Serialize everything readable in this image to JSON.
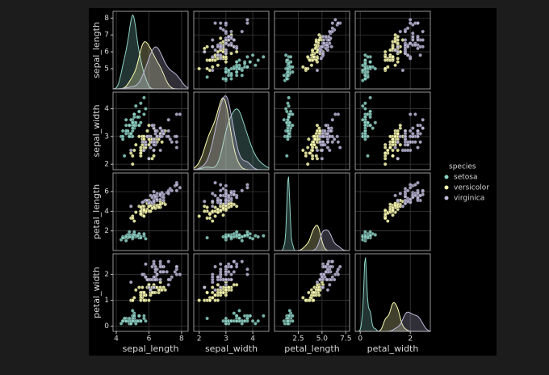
{
  "chart_data": {
    "type": "pairplot",
    "legend_title": "species",
    "legend": "right",
    "variables": [
      {
        "name": "sepal_length",
        "lim": [
          3.8,
          8.4
        ],
        "xticks": [
          4,
          6,
          8
        ],
        "yticks": [
          5,
          6,
          7,
          8
        ]
      },
      {
        "name": "sepal_width",
        "lim": [
          1.8,
          4.6
        ],
        "xticks": [
          2,
          3,
          4
        ],
        "yticks": [
          2,
          3,
          4
        ]
      },
      {
        "name": "petal_length",
        "lim": [
          0,
          7.9
        ],
        "xticks": [
          {
            "value": 2.5,
            "label": "2.5"
          },
          {
            "value": 5,
            "label": "5.0"
          },
          {
            "value": 7.5,
            "label": "7.5"
          }
        ],
        "yticks": [
          2,
          4,
          6
        ]
      },
      {
        "name": "petal_width",
        "lim": [
          -0.2,
          2.8
        ],
        "xticks": [
          0,
          2
        ],
        "yticks": [
          0,
          1,
          2
        ]
      }
    ],
    "series": [
      {
        "name": "setosa",
        "color": "#8dd3c7",
        "values": [
          [
            5.1,
            3.5,
            1.4,
            0.2
          ],
          [
            4.9,
            3.0,
            1.4,
            0.2
          ],
          [
            4.7,
            3.2,
            1.3,
            0.2
          ],
          [
            4.6,
            3.1,
            1.5,
            0.2
          ],
          [
            5.0,
            3.6,
            1.4,
            0.2
          ],
          [
            5.4,
            3.9,
            1.7,
            0.4
          ],
          [
            4.6,
            3.4,
            1.4,
            0.3
          ],
          [
            5.0,
            3.4,
            1.5,
            0.2
          ],
          [
            4.4,
            2.9,
            1.4,
            0.2
          ],
          [
            4.9,
            3.1,
            1.5,
            0.1
          ],
          [
            5.4,
            3.7,
            1.5,
            0.2
          ],
          [
            4.8,
            3.4,
            1.6,
            0.2
          ],
          [
            4.8,
            3.0,
            1.4,
            0.1
          ],
          [
            4.3,
            3.0,
            1.1,
            0.1
          ],
          [
            5.8,
            4.0,
            1.2,
            0.2
          ],
          [
            5.7,
            4.4,
            1.5,
            0.4
          ],
          [
            5.4,
            3.9,
            1.3,
            0.4
          ],
          [
            5.1,
            3.5,
            1.4,
            0.3
          ],
          [
            5.7,
            3.8,
            1.7,
            0.3
          ],
          [
            5.1,
            3.8,
            1.5,
            0.3
          ],
          [
            5.4,
            3.4,
            1.7,
            0.2
          ],
          [
            5.1,
            3.7,
            1.5,
            0.4
          ],
          [
            4.6,
            3.6,
            1.0,
            0.2
          ],
          [
            5.1,
            3.3,
            1.7,
            0.5
          ],
          [
            4.8,
            3.4,
            1.9,
            0.2
          ],
          [
            5.0,
            3.0,
            1.6,
            0.2
          ],
          [
            5.0,
            3.4,
            1.6,
            0.4
          ],
          [
            5.2,
            3.5,
            1.5,
            0.2
          ],
          [
            5.2,
            3.4,
            1.4,
            0.2
          ],
          [
            4.7,
            3.2,
            1.6,
            0.2
          ],
          [
            4.8,
            3.1,
            1.6,
            0.2
          ],
          [
            5.4,
            3.4,
            1.5,
            0.4
          ],
          [
            5.2,
            4.1,
            1.5,
            0.1
          ],
          [
            5.5,
            4.2,
            1.4,
            0.2
          ],
          [
            4.9,
            3.1,
            1.5,
            0.2
          ],
          [
            5.0,
            3.2,
            1.2,
            0.2
          ],
          [
            5.5,
            3.5,
            1.3,
            0.2
          ],
          [
            4.9,
            3.6,
            1.4,
            0.1
          ],
          [
            4.4,
            3.0,
            1.3,
            0.2
          ],
          [
            5.1,
            3.4,
            1.5,
            0.2
          ],
          [
            5.0,
            3.5,
            1.3,
            0.3
          ],
          [
            4.5,
            2.3,
            1.3,
            0.3
          ],
          [
            4.4,
            3.2,
            1.3,
            0.2
          ],
          [
            5.0,
            3.5,
            1.6,
            0.6
          ],
          [
            5.1,
            3.8,
            1.9,
            0.4
          ],
          [
            4.8,
            3.0,
            1.4,
            0.3
          ],
          [
            5.1,
            3.8,
            1.6,
            0.2
          ],
          [
            4.6,
            3.2,
            1.4,
            0.2
          ],
          [
            5.3,
            3.7,
            1.5,
            0.2
          ],
          [
            5.0,
            3.3,
            1.4,
            0.2
          ]
        ]
      },
      {
        "name": "versicolor",
        "color": "#ffffb3",
        "values": [
          [
            7.0,
            3.2,
            4.7,
            1.4
          ],
          [
            6.4,
            3.2,
            4.5,
            1.5
          ],
          [
            6.9,
            3.1,
            4.9,
            1.5
          ],
          [
            5.5,
            2.3,
            4.0,
            1.3
          ],
          [
            6.5,
            2.8,
            4.6,
            1.5
          ],
          [
            5.7,
            2.8,
            4.5,
            1.3
          ],
          [
            6.3,
            3.3,
            4.7,
            1.6
          ],
          [
            4.9,
            2.4,
            3.3,
            1.0
          ],
          [
            6.6,
            2.9,
            4.6,
            1.3
          ],
          [
            5.2,
            2.7,
            3.9,
            1.4
          ],
          [
            5.0,
            2.0,
            3.5,
            1.0
          ],
          [
            5.9,
            3.0,
            4.2,
            1.5
          ],
          [
            6.0,
            2.2,
            4.0,
            1.0
          ],
          [
            6.1,
            2.9,
            4.7,
            1.4
          ],
          [
            5.6,
            2.9,
            3.6,
            1.3
          ],
          [
            6.7,
            3.1,
            4.4,
            1.4
          ],
          [
            5.6,
            3.0,
            4.5,
            1.5
          ],
          [
            5.8,
            2.7,
            4.1,
            1.0
          ],
          [
            6.2,
            2.2,
            4.5,
            1.5
          ],
          [
            5.6,
            2.5,
            3.9,
            1.1
          ],
          [
            5.9,
            3.2,
            4.8,
            1.8
          ],
          [
            6.1,
            2.8,
            4.0,
            1.3
          ],
          [
            6.3,
            2.5,
            4.9,
            1.5
          ],
          [
            6.1,
            2.8,
            4.7,
            1.2
          ],
          [
            6.4,
            2.9,
            4.3,
            1.3
          ],
          [
            6.6,
            3.0,
            4.4,
            1.4
          ],
          [
            6.8,
            2.8,
            4.8,
            1.4
          ],
          [
            6.7,
            3.0,
            5.0,
            1.7
          ],
          [
            6.0,
            2.9,
            4.5,
            1.5
          ],
          [
            5.7,
            2.6,
            3.5,
            1.0
          ],
          [
            5.5,
            2.4,
            3.8,
            1.1
          ],
          [
            5.5,
            2.4,
            3.7,
            1.0
          ],
          [
            5.8,
            2.7,
            3.9,
            1.2
          ],
          [
            6.0,
            2.7,
            5.1,
            1.6
          ],
          [
            5.4,
            3.0,
            4.5,
            1.5
          ],
          [
            6.0,
            3.4,
            4.5,
            1.6
          ],
          [
            6.7,
            3.1,
            4.7,
            1.5
          ],
          [
            6.3,
            2.3,
            4.4,
            1.3
          ],
          [
            5.6,
            3.0,
            4.1,
            1.3
          ],
          [
            5.5,
            2.5,
            4.0,
            1.3
          ],
          [
            5.5,
            2.6,
            4.4,
            1.2
          ],
          [
            6.1,
            3.0,
            4.6,
            1.4
          ],
          [
            5.8,
            2.6,
            4.0,
            1.2
          ],
          [
            5.0,
            2.3,
            3.3,
            1.0
          ],
          [
            5.6,
            2.7,
            4.2,
            1.3
          ],
          [
            5.7,
            3.0,
            4.2,
            1.2
          ],
          [
            5.7,
            2.9,
            4.2,
            1.3
          ],
          [
            6.2,
            2.9,
            4.3,
            1.3
          ],
          [
            5.1,
            2.5,
            3.0,
            1.1
          ],
          [
            5.7,
            2.8,
            4.1,
            1.3
          ]
        ]
      },
      {
        "name": "virginica",
        "color": "#bebada",
        "values": [
          [
            6.3,
            3.3,
            6.0,
            2.5
          ],
          [
            5.8,
            2.7,
            5.1,
            1.9
          ],
          [
            7.1,
            3.0,
            5.9,
            2.1
          ],
          [
            6.3,
            2.9,
            5.6,
            1.8
          ],
          [
            6.5,
            3.0,
            5.8,
            2.2
          ],
          [
            7.6,
            3.0,
            6.6,
            2.1
          ],
          [
            4.9,
            2.5,
            4.5,
            1.7
          ],
          [
            7.3,
            2.9,
            6.3,
            1.8
          ],
          [
            6.7,
            2.5,
            5.8,
            1.8
          ],
          [
            7.2,
            3.6,
            6.1,
            2.5
          ],
          [
            6.5,
            3.2,
            5.1,
            2.0
          ],
          [
            6.4,
            2.7,
            5.3,
            1.9
          ],
          [
            6.8,
            3.0,
            5.5,
            2.1
          ],
          [
            5.7,
            2.5,
            5.0,
            2.0
          ],
          [
            5.8,
            2.8,
            5.1,
            2.4
          ],
          [
            6.4,
            3.2,
            5.3,
            2.3
          ],
          [
            6.5,
            3.0,
            5.5,
            1.8
          ],
          [
            7.7,
            3.8,
            6.7,
            2.2
          ],
          [
            7.7,
            2.6,
            6.9,
            2.3
          ],
          [
            6.0,
            2.2,
            5.0,
            1.5
          ],
          [
            6.9,
            3.2,
            5.7,
            2.3
          ],
          [
            5.6,
            2.8,
            4.9,
            2.0
          ],
          [
            7.7,
            2.8,
            6.7,
            2.0
          ],
          [
            6.3,
            2.7,
            4.9,
            1.8
          ],
          [
            6.7,
            3.3,
            5.7,
            2.1
          ],
          [
            7.2,
            3.2,
            6.0,
            1.8
          ],
          [
            6.2,
            2.8,
            4.8,
            1.8
          ],
          [
            6.1,
            3.0,
            4.9,
            1.8
          ],
          [
            6.4,
            2.8,
            5.6,
            2.1
          ],
          [
            7.2,
            3.0,
            5.8,
            1.6
          ],
          [
            7.4,
            2.8,
            6.1,
            1.9
          ],
          [
            7.9,
            3.8,
            6.4,
            2.0
          ],
          [
            6.4,
            2.8,
            5.6,
            2.2
          ],
          [
            6.3,
            2.8,
            5.1,
            1.5
          ],
          [
            6.1,
            2.6,
            5.6,
            1.4
          ],
          [
            7.7,
            3.0,
            6.1,
            2.3
          ],
          [
            6.3,
            3.4,
            5.6,
            2.4
          ],
          [
            6.4,
            3.1,
            5.5,
            1.8
          ],
          [
            6.0,
            3.0,
            4.8,
            1.8
          ],
          [
            6.9,
            3.1,
            5.4,
            2.1
          ],
          [
            6.7,
            3.1,
            5.6,
            2.4
          ],
          [
            6.9,
            3.1,
            5.1,
            2.3
          ],
          [
            5.8,
            2.7,
            5.1,
            1.9
          ],
          [
            6.8,
            3.2,
            5.9,
            2.3
          ],
          [
            6.7,
            3.3,
            5.7,
            2.5
          ],
          [
            6.7,
            3.0,
            5.2,
            2.3
          ],
          [
            6.3,
            2.5,
            5.0,
            1.9
          ],
          [
            6.5,
            3.0,
            5.2,
            2.0
          ],
          [
            6.2,
            3.4,
            5.4,
            2.3
          ],
          [
            5.9,
            3.0,
            5.1,
            1.8
          ]
        ]
      }
    ]
  }
}
